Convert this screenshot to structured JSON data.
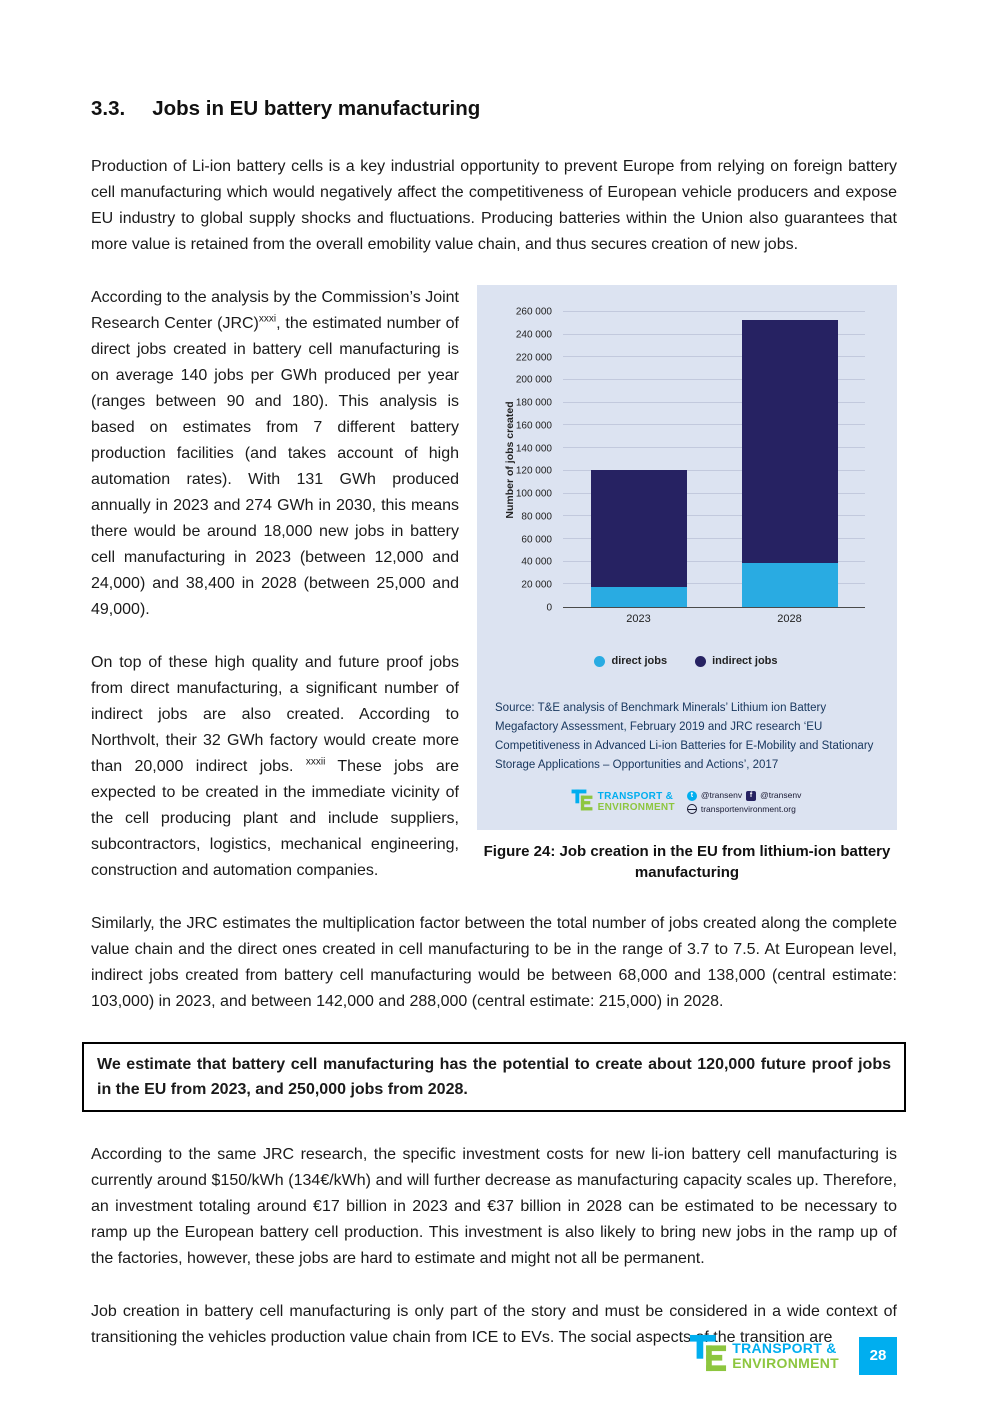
{
  "heading": {
    "number": "3.3.",
    "title": "Jobs in EU battery manufacturing"
  },
  "paragraphs": {
    "p1": "Production of Li-ion battery cells is a key industrial opportunity to prevent Europe from relying on foreign battery cell manufacturing which would negatively affect the competitiveness of European vehicle producers and expose EU industry to global supply shocks and fluctuations. Producing batteries within the Union also guarantees that more value is retained from the overall emobility value chain, and thus secures creation of new jobs.",
    "p2_part1": "According to the analysis by the Commission’s Joint Research Center (JRC)",
    "p2_sup": "xxxi",
    "p2_part2": ", the estimated number of direct jobs created in battery cell manufacturing is on average 140 jobs per GWh produced per year (ranges between 90 and 180). This analysis is based on estimates from 7 different battery production facilities (and takes account of high automation rates). With 131 GWh produced annually in 2023 and 274 GWh in 2030, this means there would be around 18,000 new jobs in battery cell manufacturing in 2023 (between 12,000 and 24,000) and 38,400 in 2028 (between 25,000 and 49,000).",
    "p3_part1": "On top of these high quality and future proof jobs from direct manufacturing, a significant number of indirect jobs are also created. According to Northvolt, their 32 GWh factory would create more than 20,000 indirect jobs. ",
    "p3_sup": "xxxii",
    "p3_part2": " These jobs are expected to be created in the immediate vicinity of the cell producing plant and include suppliers, subcontractors, logistics, mechanical engineering, construction and automation companies.",
    "p4": "Similarly, the JRC estimates the multiplication factor between the total number of jobs created along the complete value chain and the direct ones created in cell manufacturing to be in the range of 3.7 to 7.5. At European level, indirect jobs created from battery cell manufacturing would be between 68,000 and 138,000 (central estimate: 103,000) in 2023, and between 142,000 and 288,000 (central estimate: 215,000) in 2028.",
    "callout": "We estimate that battery cell manufacturing has the potential to create about 120,000 future proof jobs in the EU from 2023, and 250,000 jobs from 2028.",
    "p5": "According to the same JRC research, the specific investment costs for new li-ion battery cell manufacturing is currently around $150/kWh (134€/kWh) and will further decrease as manufacturing capacity scales up. Therefore, an investment totaling around €17 billion in 2023 and €37 billion in 2028 can be estimated to be necessary to ramp up the European battery cell production. This investment is also likely to bring new jobs in the ramp up of the factories, however, these jobs are hard to estimate and might not all be permanent.",
    "p6": "Job creation in battery cell manufacturing is only part of the story and must be considered in a wide context of transitioning the vehicles production value chain from ICE to EVs. The social aspects of the transition are"
  },
  "figure": {
    "caption": "Figure 24: Job creation in the EU from lithium-ion battery manufacturing",
    "source": "Source: T&E analysis of Benchmark Minerals’ Lithium ion Battery Megafactory Assessment, February 2019 and JRC research ‘EU Competitiveness in Advanced Li-ion Batteries for E-Mobility and Stationary Storage Applications – Opportunities and Actions’, 2017",
    "logo": {
      "line1": "TRANSPORT &",
      "line2": "ENVIRONMENT"
    },
    "social": {
      "twitter": "@transenv",
      "facebook": "@transenv",
      "web": "transportenvironment.org"
    }
  },
  "chart_data": {
    "type": "bar",
    "stacked": true,
    "categories": [
      "2023",
      "2028"
    ],
    "series": [
      {
        "name": "direct jobs",
        "color": "#29abe2",
        "values": [
          18000,
          38400
        ]
      },
      {
        "name": "indirect jobs",
        "color": "#262262",
        "values": [
          103000,
          215000
        ]
      }
    ],
    "xlabel": "",
    "ylabel": "Number of jobs created",
    "ylim": [
      0,
      260000
    ],
    "ytick_step": 20000,
    "grid": true,
    "legend_position": "bottom"
  },
  "footer": {
    "logo_line1": "TRANSPORT &",
    "logo_line2": "ENVIRONMENT",
    "page_number": "28"
  },
  "colors": {
    "direct_jobs": "#29abe2",
    "indirect_jobs": "#262262",
    "panel_background": "#dce3f1",
    "brand_blue": "#00aeef",
    "brand_green": "#8dc63f",
    "page_number_box": "#00aeef"
  }
}
